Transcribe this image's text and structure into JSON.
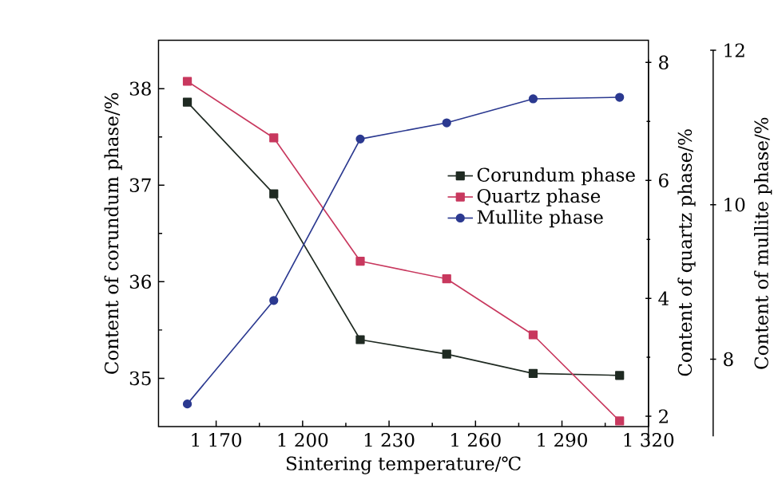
{
  "chart_data": {
    "type": "line",
    "x": [
      1160,
      1190,
      1220,
      1250,
      1280,
      1310
    ],
    "xlabel": "Sintering temperature/℃",
    "ylabel": "Content of corundum phase/%",
    "y2label": "Content of quartz phase/%",
    "y3label": "Content of mullite phase/%",
    "xlim": [
      1150,
      1320
    ],
    "xticks": [
      {
        "value": 1170,
        "label": "1 170"
      },
      {
        "value": 1200,
        "label": "1 200"
      },
      {
        "value": 1230,
        "label": "1 230"
      },
      {
        "value": 1260,
        "label": "1 260"
      },
      {
        "value": 1290,
        "label": "1 290"
      },
      {
        "value": 1320,
        "label": "1 320"
      }
    ],
    "ylim": [
      34.5,
      38.5
    ],
    "yticks": [
      35,
      36,
      37,
      38
    ],
    "y2lim": [
      1.5,
      8.05
    ],
    "y2ticks": [
      2,
      4,
      6,
      8
    ],
    "y3lim": [
      7,
      12
    ],
    "y3ticks": [
      8,
      10,
      12
    ],
    "legend": "right",
    "line_style": "solid",
    "series": [
      {
        "name": "Corundum phase",
        "color": "#1f2a22",
        "marker": "square",
        "values": [
          37.86,
          36.91,
          35.4,
          35.25,
          35.05,
          35.03
        ]
      },
      {
        "name": "Quartz phase",
        "color": "#c8385e",
        "marker": "square",
        "axis": "y2",
        "values": [
          7.68,
          6.72,
          4.63,
          4.33,
          3.38,
          1.92
        ]
      },
      {
        "name": "Mullite phase",
        "color": "#2b3990",
        "marker": "circle",
        "axis": "y3",
        "values": [
          7.42,
          8.76,
          10.85,
          11.06,
          11.37,
          11.39
        ]
      }
    ]
  }
}
